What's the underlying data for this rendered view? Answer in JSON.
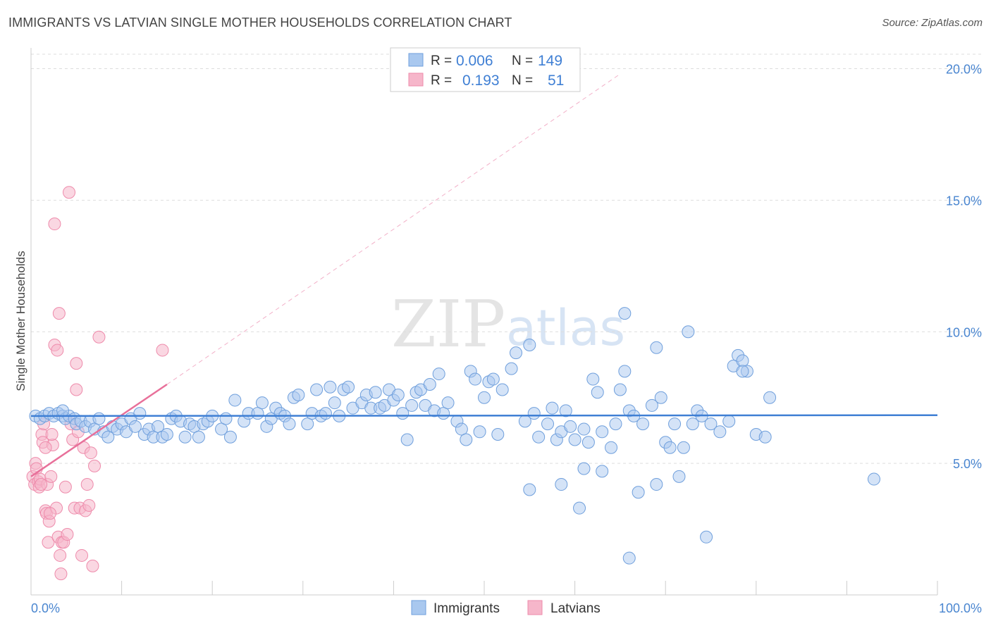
{
  "header": {
    "title": "IMMIGRANTS VS LATVIAN SINGLE MOTHER HOUSEHOLDS CORRELATION CHART",
    "source": "Source: ZipAtlas.com"
  },
  "watermark": {
    "zip": "ZIP",
    "atlas": "atlas"
  },
  "stats": [
    {
      "r_label": "R = ",
      "r_value": "0.006",
      "n_label": "N = ",
      "n_value": "149",
      "color": "#7aaee8"
    },
    {
      "r_label": "R = ",
      "r_value": "0.193",
      "n_label": "N = ",
      "n_value": "51",
      "color": "#f29ab7"
    }
  ],
  "colors": {
    "immigrants_fill": "#a9c8ef",
    "immigrants_stroke": "#6f9fdc",
    "immigrants_line": "#3f7fd4",
    "latvians_fill": "#f6b6ca",
    "latvians_stroke": "#ee8bab",
    "latvians_line": "#e8709a",
    "axis_text": "#4a86d0",
    "grid": "#dddddd"
  },
  "chart_data": {
    "type": "scatter",
    "title": "IMMIGRANTS VS LATVIAN SINGLE MOTHER HOUSEHOLDS CORRELATION CHART",
    "xlabel": "",
    "ylabel": "Single Mother Households",
    "xlim": [
      0,
      100
    ],
    "ylim": [
      0,
      20
    ],
    "x_tick_labels": [
      {
        "value": 0,
        "label": "0.0%"
      },
      {
        "value": 100,
        "label": "100.0%"
      }
    ],
    "y_tick_labels": [
      {
        "value": 5,
        "label": "5.0%"
      },
      {
        "value": 10,
        "label": "10.0%"
      },
      {
        "value": 15,
        "label": "15.0%"
      },
      {
        "value": 20,
        "label": "20.0%"
      }
    ],
    "grid": "horizontal dashed",
    "legend": [
      "Immigrants",
      "Latvians"
    ],
    "series": [
      {
        "name": "Immigrants",
        "trend": {
          "x": [
            0,
            100
          ],
          "y": [
            6.8,
            6.83
          ]
        },
        "points": [
          [
            0.5,
            6.8
          ],
          [
            1.0,
            6.7
          ],
          [
            1.5,
            6.8
          ],
          [
            2.0,
            6.9
          ],
          [
            2.5,
            6.8
          ],
          [
            3.0,
            6.9
          ],
          [
            3.5,
            6.8
          ],
          [
            3.8,
            6.7
          ],
          [
            4.2,
            6.8
          ],
          [
            4.8,
            6.7
          ],
          [
            3.5,
            7.0
          ],
          [
            5.0,
            6.5
          ],
          [
            5.5,
            6.6
          ],
          [
            6.0,
            6.4
          ],
          [
            6.5,
            6.6
          ],
          [
            7.0,
            6.3
          ],
          [
            7.5,
            6.7
          ],
          [
            8.0,
            6.2
          ],
          [
            8.5,
            6.0
          ],
          [
            9.0,
            6.4
          ],
          [
            9.5,
            6.3
          ],
          [
            10.0,
            6.5
          ],
          [
            10.5,
            6.2
          ],
          [
            11.0,
            6.7
          ],
          [
            11.5,
            6.4
          ],
          [
            12.0,
            6.9
          ],
          [
            12.5,
            6.1
          ],
          [
            13.0,
            6.3
          ],
          [
            13.5,
            6.0
          ],
          [
            14.0,
            6.4
          ],
          [
            14.5,
            6.0
          ],
          [
            15.0,
            6.1
          ],
          [
            15.5,
            6.7
          ],
          [
            16.0,
            6.8
          ],
          [
            16.5,
            6.6
          ],
          [
            17.0,
            6.0
          ],
          [
            17.5,
            6.5
          ],
          [
            18.0,
            6.4
          ],
          [
            18.5,
            6.0
          ],
          [
            19.0,
            6.5
          ],
          [
            19.5,
            6.6
          ],
          [
            20.0,
            6.8
          ],
          [
            21.0,
            6.3
          ],
          [
            21.5,
            6.7
          ],
          [
            22.0,
            6.0
          ],
          [
            22.5,
            7.4
          ],
          [
            23.5,
            6.6
          ],
          [
            24.0,
            6.9
          ],
          [
            25.0,
            6.9
          ],
          [
            25.5,
            7.3
          ],
          [
            26.0,
            6.4
          ],
          [
            26.5,
            6.7
          ],
          [
            27.0,
            7.1
          ],
          [
            27.5,
            6.9
          ],
          [
            28.0,
            6.8
          ],
          [
            28.5,
            6.5
          ],
          [
            29.0,
            7.5
          ],
          [
            29.5,
            7.6
          ],
          [
            30.5,
            6.5
          ],
          [
            31.0,
            6.9
          ],
          [
            31.5,
            7.8
          ],
          [
            32.0,
            6.8
          ],
          [
            32.5,
            6.9
          ],
          [
            33.0,
            7.9
          ],
          [
            33.5,
            7.3
          ],
          [
            34.0,
            6.8
          ],
          [
            34.5,
            7.8
          ],
          [
            35.0,
            7.9
          ],
          [
            35.5,
            7.1
          ],
          [
            36.5,
            7.3
          ],
          [
            37.0,
            7.6
          ],
          [
            37.5,
            7.1
          ],
          [
            38.0,
            7.7
          ],
          [
            38.5,
            7.1
          ],
          [
            39.0,
            7.2
          ],
          [
            39.5,
            7.8
          ],
          [
            40.0,
            7.4
          ],
          [
            40.5,
            7.6
          ],
          [
            41.0,
            6.9
          ],
          [
            41.5,
            5.9
          ],
          [
            42.0,
            7.2
          ],
          [
            42.5,
            7.7
          ],
          [
            43.0,
            7.8
          ],
          [
            43.5,
            7.2
          ],
          [
            44.0,
            8.0
          ],
          [
            44.5,
            7.0
          ],
          [
            45.0,
            8.4
          ],
          [
            45.5,
            6.9
          ],
          [
            46.0,
            7.3
          ],
          [
            47.0,
            6.6
          ],
          [
            47.5,
            6.3
          ],
          [
            48.0,
            5.9
          ],
          [
            48.5,
            8.5
          ],
          [
            49.0,
            8.2
          ],
          [
            49.5,
            6.2
          ],
          [
            50.0,
            7.5
          ],
          [
            50.5,
            8.1
          ],
          [
            51.0,
            8.2
          ],
          [
            51.5,
            6.1
          ],
          [
            52.0,
            7.8
          ],
          [
            53.0,
            8.6
          ],
          [
            53.5,
            9.2
          ],
          [
            54.5,
            6.6
          ],
          [
            55.0,
            9.5
          ],
          [
            55.5,
            6.9
          ],
          [
            56.0,
            6.0
          ],
          [
            57.0,
            6.5
          ],
          [
            57.5,
            7.1
          ],
          [
            58.0,
            5.9
          ],
          [
            58.5,
            6.2
          ],
          [
            59.0,
            7.0
          ],
          [
            59.5,
            6.4
          ],
          [
            60.0,
            5.9
          ],
          [
            61.0,
            6.3
          ],
          [
            61.5,
            5.8
          ],
          [
            62.0,
            8.2
          ],
          [
            62.5,
            7.7
          ],
          [
            63.0,
            6.2
          ],
          [
            64.0,
            5.6
          ],
          [
            64.5,
            6.5
          ],
          [
            65.0,
            7.8
          ],
          [
            65.5,
            8.5
          ],
          [
            66.0,
            7.0
          ],
          [
            66.5,
            6.8
          ],
          [
            67.5,
            6.5
          ],
          [
            68.5,
            7.2
          ],
          [
            69.0,
            9.4
          ],
          [
            69.5,
            7.5
          ],
          [
            70.0,
            5.8
          ],
          [
            70.5,
            5.6
          ],
          [
            71.0,
            6.5
          ],
          [
            72.0,
            5.6
          ],
          [
            73.0,
            6.5
          ],
          [
            73.5,
            7.0
          ],
          [
            74.0,
            6.8
          ],
          [
            75.0,
            6.5
          ],
          [
            76.0,
            6.2
          ],
          [
            77.0,
            6.6
          ],
          [
            77.5,
            8.7
          ],
          [
            78.0,
            9.1
          ],
          [
            78.5,
            8.9
          ],
          [
            79.0,
            8.5
          ],
          [
            80.0,
            6.1
          ],
          [
            81.5,
            7.5
          ],
          [
            61.0,
            4.8
          ],
          [
            63.0,
            4.7
          ],
          [
            55.0,
            4.0
          ],
          [
            58.5,
            4.2
          ],
          [
            60.5,
            3.3
          ],
          [
            69.0,
            4.2
          ],
          [
            71.5,
            4.5
          ],
          [
            93.0,
            4.4
          ],
          [
            67.0,
            3.9
          ],
          [
            72.5,
            10.0
          ],
          [
            66.0,
            1.4
          ],
          [
            74.5,
            2.2
          ],
          [
            78.5,
            8.5
          ],
          [
            65.5,
            10.7
          ],
          [
            81.0,
            6.0
          ]
        ]
      },
      {
        "name": "Latvians",
        "trend": {
          "x": [
            0,
            15
          ],
          "y": [
            4.5,
            8.0
          ]
        },
        "trend_extrapolated": {
          "x": [
            15,
            65
          ],
          "y": [
            8.0,
            19.8
          ]
        },
        "points": [
          [
            0.2,
            4.5
          ],
          [
            0.4,
            4.2
          ],
          [
            0.5,
            5.0
          ],
          [
            0.6,
            4.8
          ],
          [
            0.8,
            4.3
          ],
          [
            0.9,
            4.1
          ],
          [
            1.0,
            4.4
          ],
          [
            1.2,
            6.1
          ],
          [
            1.3,
            5.8
          ],
          [
            1.4,
            6.5
          ],
          [
            1.6,
            3.2
          ],
          [
            1.7,
            3.1
          ],
          [
            1.8,
            4.2
          ],
          [
            1.9,
            2.0
          ],
          [
            2.0,
            2.8
          ],
          [
            2.2,
            4.5
          ],
          [
            2.4,
            5.7
          ],
          [
            2.6,
            14.1
          ],
          [
            2.8,
            3.3
          ],
          [
            3.0,
            2.2
          ],
          [
            3.2,
            1.5
          ],
          [
            3.4,
            2.0
          ],
          [
            3.6,
            2.0
          ],
          [
            3.8,
            4.1
          ],
          [
            4.0,
            2.3
          ],
          [
            4.2,
            15.3
          ],
          [
            4.4,
            6.5
          ],
          [
            4.6,
            5.9
          ],
          [
            4.8,
            3.3
          ],
          [
            5.0,
            8.8
          ],
          [
            5.2,
            6.2
          ],
          [
            5.4,
            3.3
          ],
          [
            5.6,
            1.5
          ],
          [
            5.8,
            5.6
          ],
          [
            6.0,
            3.2
          ],
          [
            6.2,
            4.2
          ],
          [
            6.4,
            3.4
          ],
          [
            6.6,
            5.4
          ],
          [
            6.8,
            1.1
          ],
          [
            7.0,
            4.9
          ],
          [
            2.6,
            9.5
          ],
          [
            2.9,
            9.3
          ],
          [
            3.1,
            10.7
          ],
          [
            5.0,
            7.8
          ],
          [
            7.5,
            9.8
          ],
          [
            14.5,
            9.3
          ],
          [
            1.6,
            5.6
          ],
          [
            2.1,
            3.1
          ],
          [
            2.3,
            6.1
          ],
          [
            3.3,
            0.8
          ],
          [
            1.1,
            4.2
          ]
        ]
      }
    ]
  },
  "legend_bottom": {
    "immigrants": "Immigrants",
    "latvians": "Latvians"
  }
}
